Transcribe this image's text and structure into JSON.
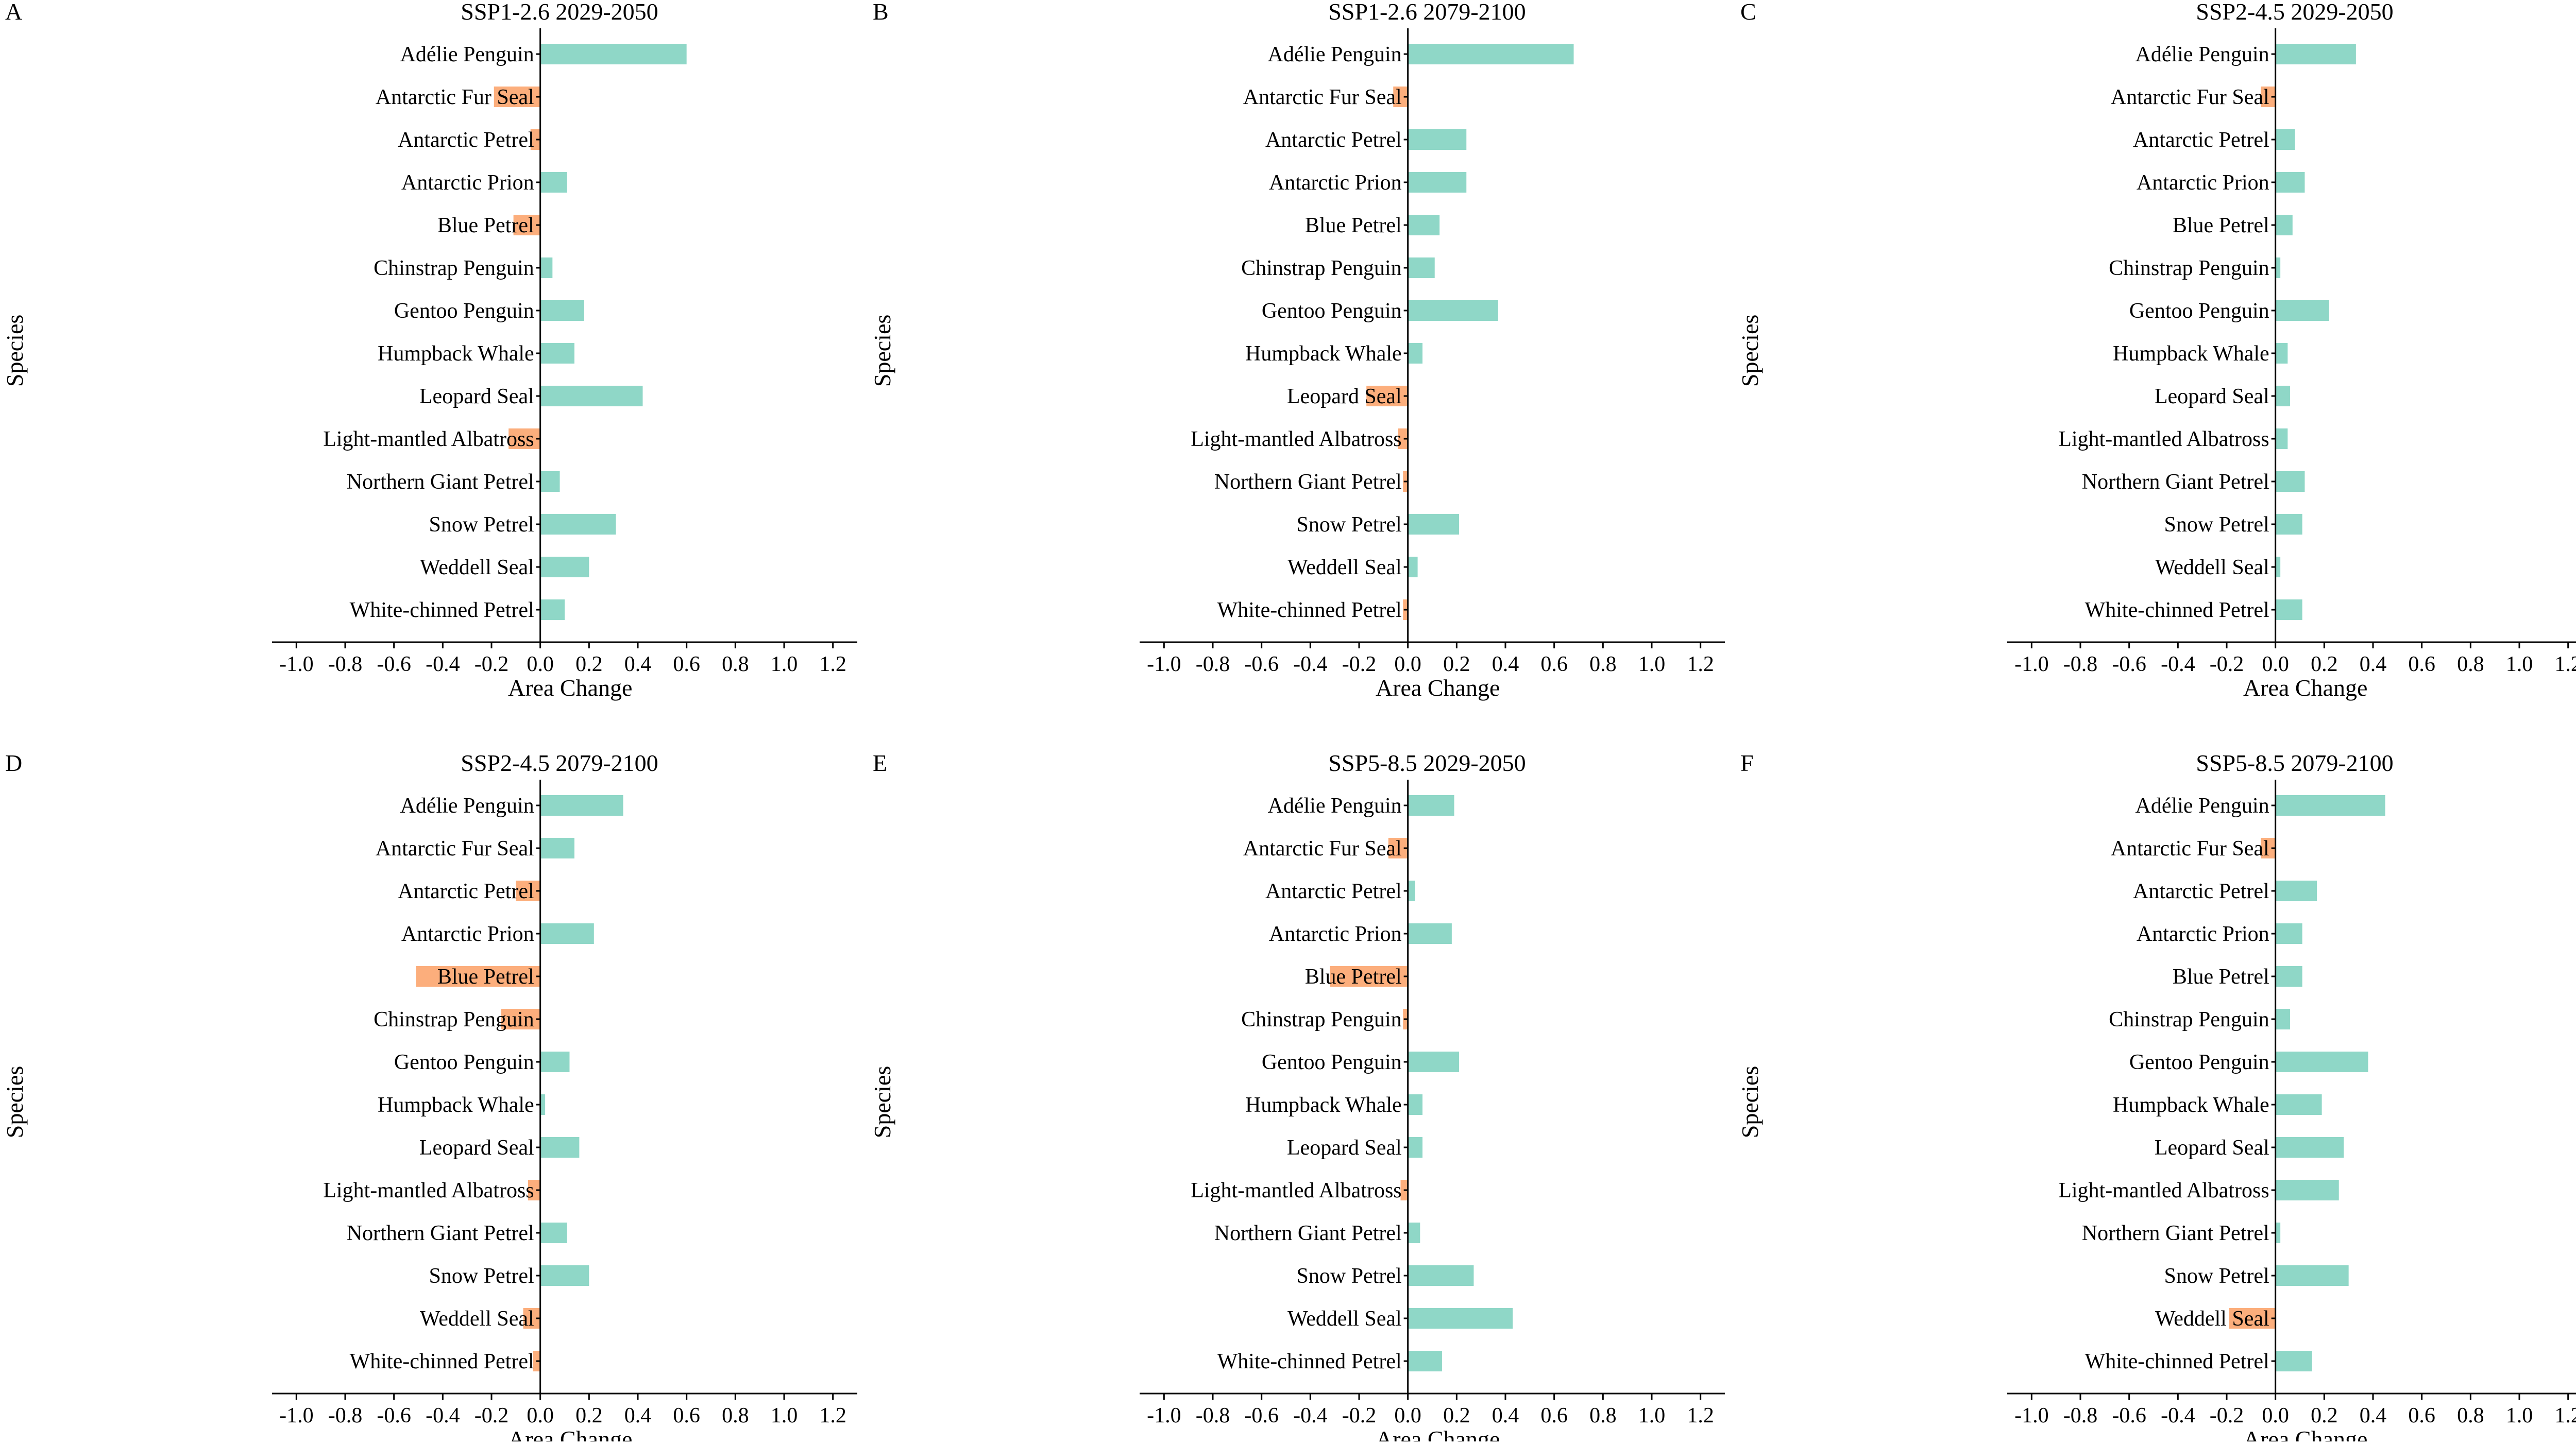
{
  "figure": {
    "species_axis_label": "Species",
    "area_axis_label": "Area Change",
    "x_ticks": [
      "-1.0",
      "-0.8",
      "-0.6",
      "-0.4",
      "-0.2",
      "0.0",
      "0.2",
      "0.4",
      "0.6",
      "0.8",
      "1.0",
      "1.2"
    ],
    "colors": {
      "positive": "#8fd7c7",
      "negative": "#fcae7c",
      "axis": "#000000"
    }
  },
  "chart_data": [
    {
      "type": "bar",
      "orientation": "horizontal",
      "letter": "A",
      "title": "SSP1-2.6 2029-2050",
      "xlabel": "Area Change",
      "ylabel": "Species",
      "xlim": [
        -1.1,
        1.3
      ],
      "categories": [
        "Adélie Penguin",
        "Antarctic Fur Seal",
        "Antarctic Petrel",
        "Antarctic Prion",
        "Blue Petrel",
        "Chinstrap Penguin",
        "Gentoo Penguin",
        "Humpback Whale",
        "Leopard Seal",
        "Light-mantled Albatross",
        "Northern Giant Petrel",
        "Snow Petrel",
        "Weddell Seal",
        "White-chinned Petrel"
      ],
      "values": [
        0.6,
        -0.19,
        -0.04,
        0.11,
        -0.11,
        0.05,
        0.18,
        0.14,
        0.42,
        -0.13,
        0.08,
        0.31,
        0.2,
        0.1
      ]
    },
    {
      "type": "bar",
      "orientation": "horizontal",
      "letter": "B",
      "title": "SSP1-2.6 2079-2100",
      "xlabel": "Area Change",
      "ylabel": "Species",
      "xlim": [
        -1.1,
        1.3
      ],
      "categories": [
        "Adélie Penguin",
        "Antarctic Fur Seal",
        "Antarctic Petrel",
        "Antarctic Prion",
        "Blue Petrel",
        "Chinstrap Penguin",
        "Gentoo Penguin",
        "Humpback Whale",
        "Leopard Seal",
        "Light-mantled Albatross",
        "Northern Giant Petrel",
        "Snow Petrel",
        "Weddell Seal",
        "White-chinned Petrel"
      ],
      "values": [
        0.68,
        -0.06,
        0.24,
        0.24,
        0.13,
        0.11,
        0.37,
        0.06,
        -0.17,
        -0.04,
        -0.02,
        0.21,
        0.04,
        -0.02
      ]
    },
    {
      "type": "bar",
      "orientation": "horizontal",
      "letter": "C",
      "title": "SSP2-4.5 2029-2050",
      "xlabel": "Area Change",
      "ylabel": "Species",
      "xlim": [
        -1.1,
        1.3
      ],
      "categories": [
        "Adélie Penguin",
        "Antarctic Fur Seal",
        "Antarctic Petrel",
        "Antarctic Prion",
        "Blue Petrel",
        "Chinstrap Penguin",
        "Gentoo Penguin",
        "Humpback Whale",
        "Leopard Seal",
        "Light-mantled Albatross",
        "Northern Giant Petrel",
        "Snow Petrel",
        "Weddell Seal",
        "White-chinned Petrel"
      ],
      "values": [
        0.33,
        -0.06,
        0.08,
        0.12,
        0.07,
        0.02,
        0.22,
        0.05,
        0.06,
        0.05,
        0.12,
        0.11,
        0.02,
        0.11
      ]
    },
    {
      "type": "bar",
      "orientation": "horizontal",
      "letter": "D",
      "title": "SSP2-4.5 2079-2100",
      "xlabel": "Area Change",
      "ylabel": "Species",
      "xlim": [
        -1.1,
        1.3
      ],
      "categories": [
        "Adélie Penguin",
        "Antarctic Fur Seal",
        "Antarctic Petrel",
        "Antarctic Prion",
        "Blue Petrel",
        "Chinstrap Penguin",
        "Gentoo Penguin",
        "Humpback Whale",
        "Leopard Seal",
        "Light-mantled Albatross",
        "Northern Giant Petrel",
        "Snow Petrel",
        "Weddell Seal",
        "White-chinned Petrel"
      ],
      "values": [
        0.34,
        0.14,
        -0.1,
        0.22,
        -0.51,
        -0.16,
        0.12,
        0.02,
        0.16,
        -0.05,
        0.11,
        0.2,
        -0.07,
        -0.03
      ]
    },
    {
      "type": "bar",
      "orientation": "horizontal",
      "letter": "E",
      "title": "SSP5-8.5 2029-2050",
      "xlabel": "Area Change",
      "ylabel": "Species",
      "xlim": [
        -1.1,
        1.3
      ],
      "categories": [
        "Adélie Penguin",
        "Antarctic Fur Seal",
        "Antarctic Petrel",
        "Antarctic Prion",
        "Blue Petrel",
        "Chinstrap Penguin",
        "Gentoo Penguin",
        "Humpback Whale",
        "Leopard Seal",
        "Light-mantled Albatross",
        "Northern Giant Petrel",
        "Snow Petrel",
        "Weddell Seal",
        "White-chinned Petrel"
      ],
      "values": [
        0.19,
        -0.08,
        0.03,
        0.18,
        -0.32,
        -0.02,
        0.21,
        0.06,
        0.06,
        -0.03,
        0.05,
        0.27,
        0.43,
        0.14
      ]
    },
    {
      "type": "bar",
      "orientation": "horizontal",
      "letter": "F",
      "title": "SSP5-8.5 2079-2100",
      "xlabel": "Area Change",
      "ylabel": "Species",
      "xlim": [
        -1.1,
        1.3
      ],
      "categories": [
        "Adélie Penguin",
        "Antarctic Fur Seal",
        "Antarctic Petrel",
        "Antarctic Prion",
        "Blue Petrel",
        "Chinstrap Penguin",
        "Gentoo Penguin",
        "Humpback Whale",
        "Leopard Seal",
        "Light-mantled Albatross",
        "Northern Giant Petrel",
        "Snow Petrel",
        "Weddell Seal",
        "White-chinned Petrel"
      ],
      "values": [
        0.45,
        -0.06,
        0.17,
        0.11,
        0.11,
        0.06,
        0.38,
        0.19,
        0.28,
        0.26,
        0.02,
        0.3,
        -0.19,
        0.15
      ]
    }
  ]
}
